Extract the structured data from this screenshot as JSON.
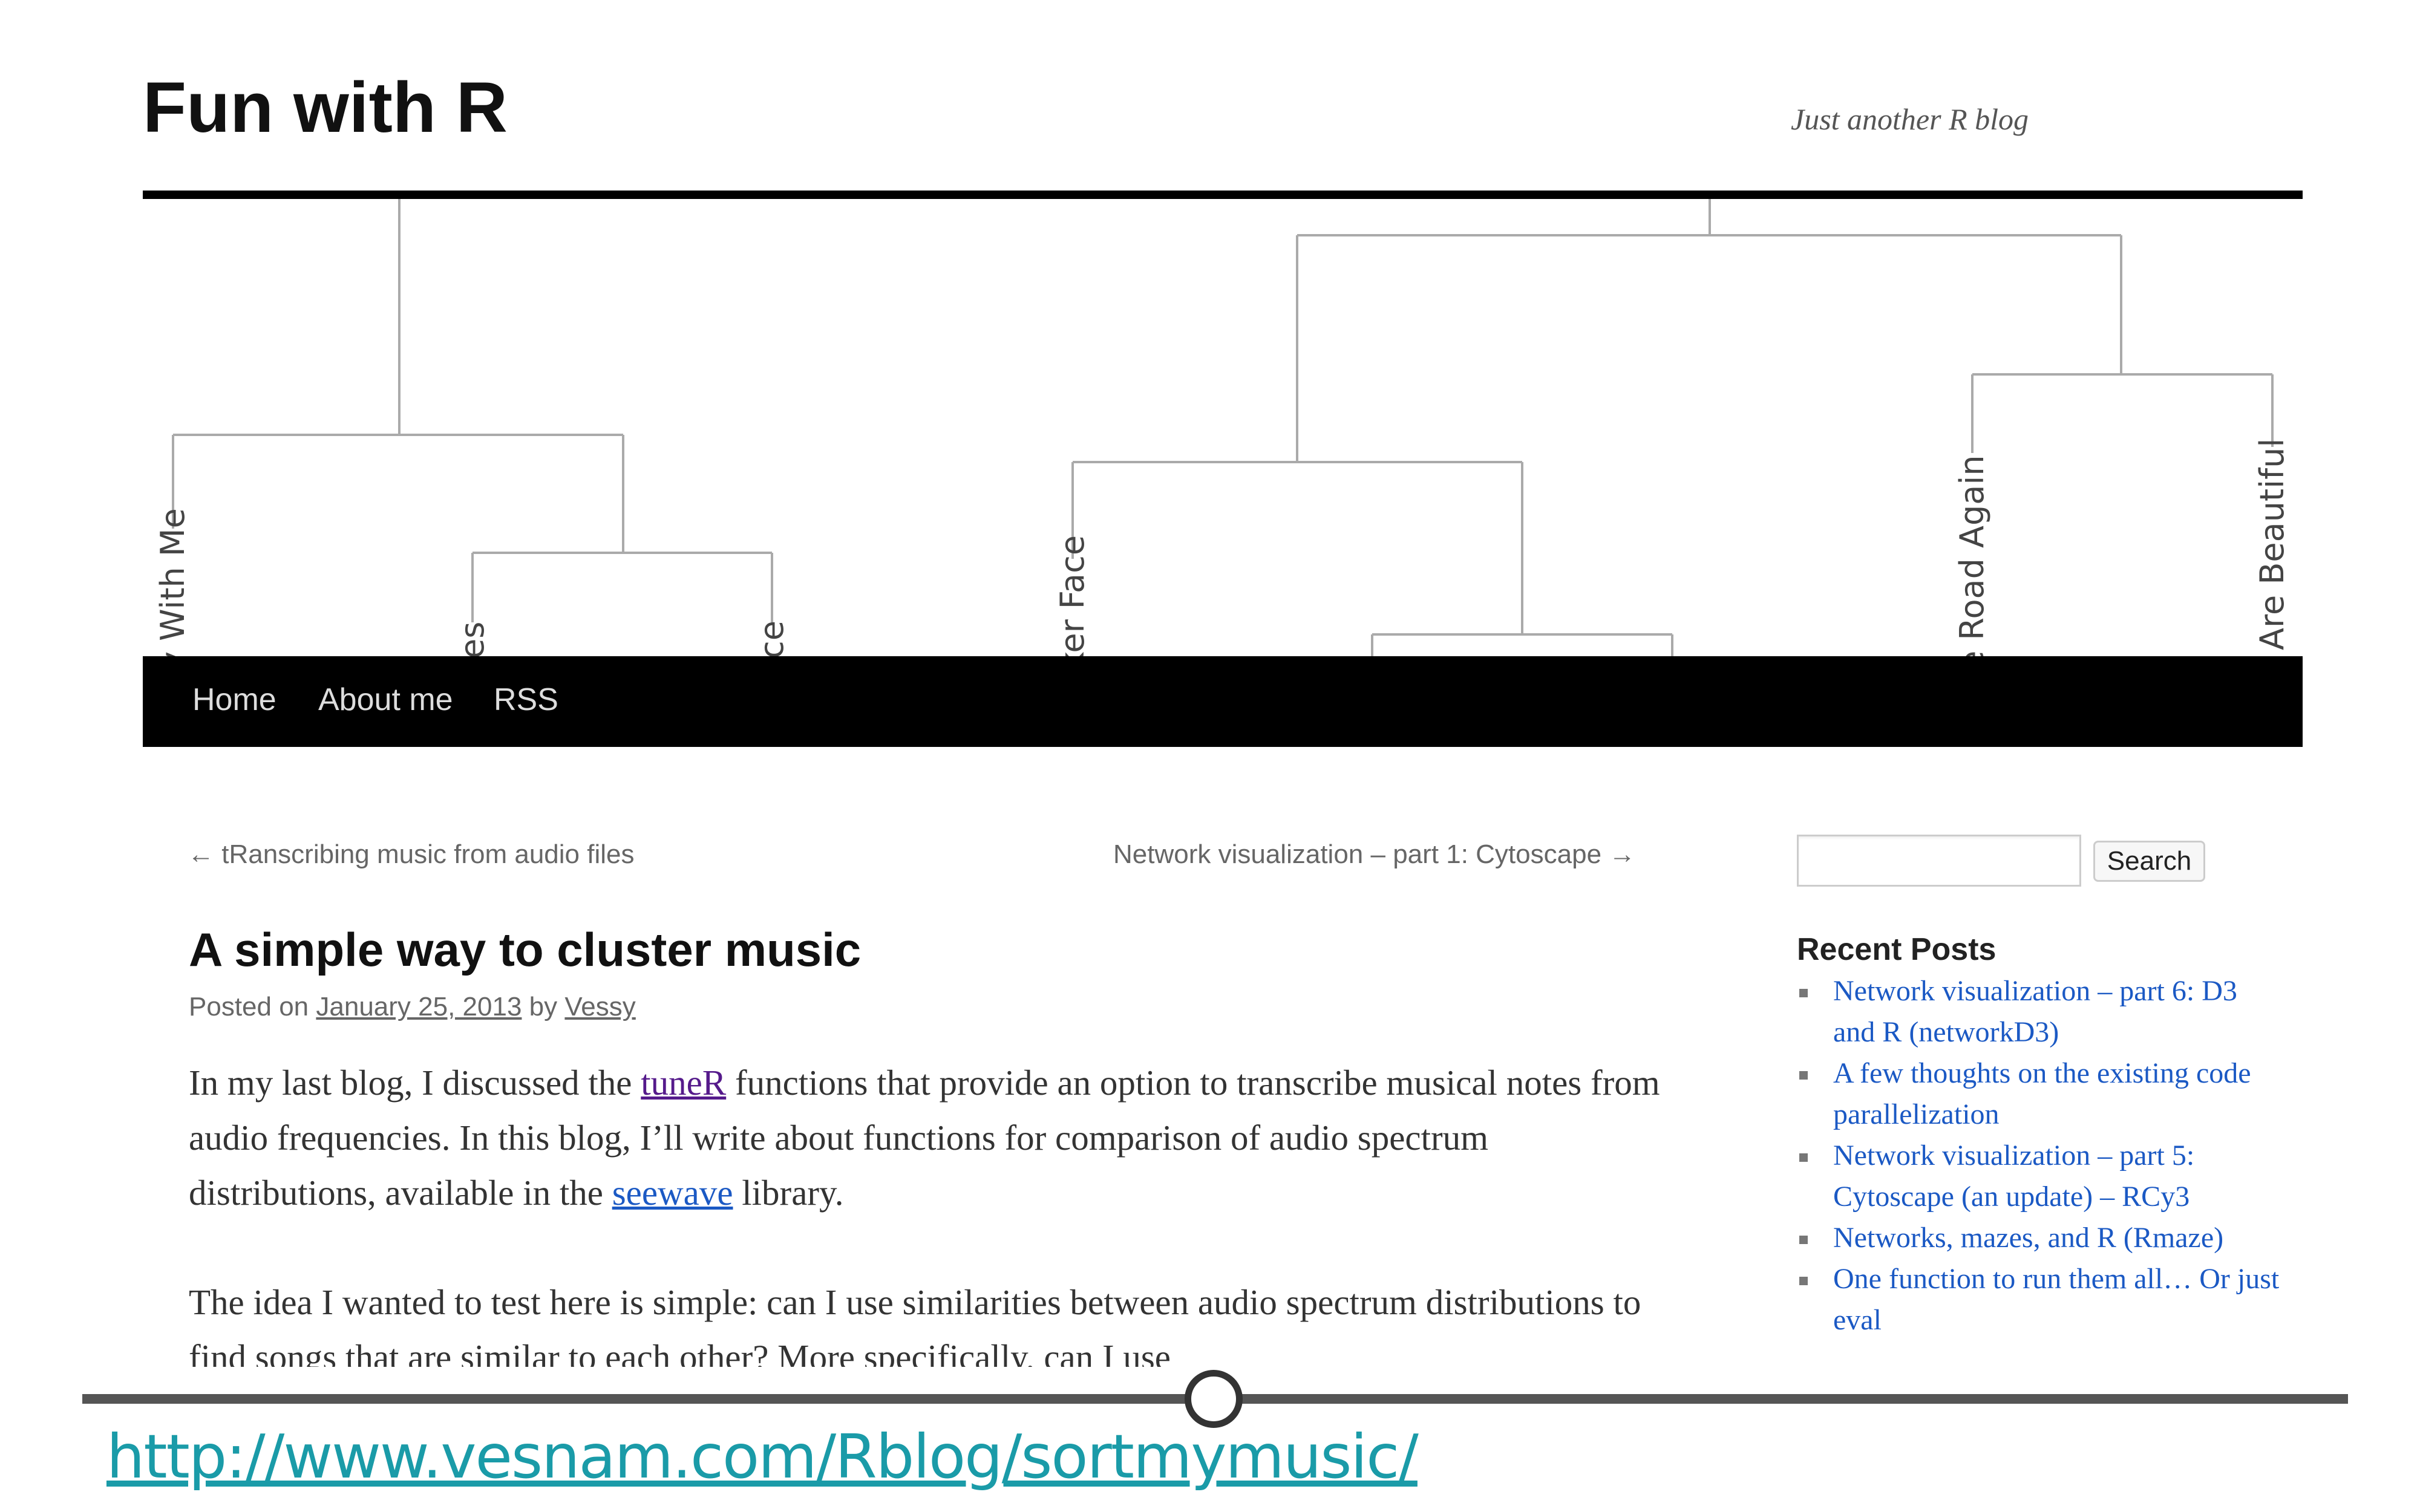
{
  "site": {
    "title": "Fun with R",
    "tagline": "Just another R blog"
  },
  "banner": {
    "leaf_labels": [
      "y With Me",
      "es",
      "ce",
      "ker Face",
      "e Road Again",
      "Are Beautiful"
    ]
  },
  "nav": {
    "items": [
      {
        "label": "Home"
      },
      {
        "label": "About me"
      },
      {
        "label": "RSS"
      }
    ]
  },
  "post_nav": {
    "previous": "← tRanscribing music from audio files",
    "next": "Network visualization – part 1: Cytoscape →"
  },
  "post": {
    "title": "A simple way to cluster music",
    "meta": {
      "posted_on": "Posted on",
      "date": "January 25, 2013",
      "by": "by",
      "author": "Vessy"
    },
    "paragraph1": {
      "text1": "In my last blog, I discussed the ",
      "link1": "tuneR",
      "text2": " functions that provide an option to transcribe musical notes from audio frequencies. In this blog, I’ll write about functions for comparison of audio spectrum distributions, available in the ",
      "link2": "seewave",
      "text3": " library."
    },
    "paragraph2": "The idea I wanted to test here is simple: can I use similarities between audio spectrum distributions to find songs that are similar to each other? More specifically, can I use"
  },
  "sidebar": {
    "search_placeholder": "",
    "search_button": "Search",
    "recent_title": "Recent Posts",
    "recent_posts": [
      "Network visualization – part 6: D3 and R (networkD3)",
      "A few thoughts on the existing code parallelization",
      "Network visualization – part 5: Cytoscape (an update) – RCy3",
      "Networks, mazes, and R (Rmaze)",
      "One function to run them all… Or just eval"
    ]
  },
  "footer": {
    "url": "http://www.vesnam.com/Rblog/sortmymusic/"
  },
  "colors": {
    "link": "#1b59c4",
    "visited_link": "#551a8b",
    "url_accent": "#1a9ba8",
    "nav_bg": "#000000"
  }
}
